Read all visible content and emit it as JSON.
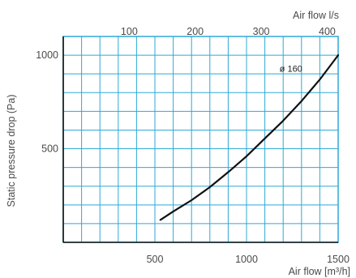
{
  "chart_data": {
    "type": "line",
    "title": "",
    "xlabel": "Air flow [m³/h]",
    "x2label": "Air flow l/s",
    "ylabel": "Static pressure drop (Pa)",
    "xlim": [
      0,
      1500
    ],
    "ylim": [
      0,
      1100
    ],
    "x_ticks": [
      500,
      1000,
      1500
    ],
    "x_tick_labels": [
      "500",
      "1000",
      "1500"
    ],
    "x2_ticks_ls": [
      100,
      200,
      300,
      400
    ],
    "x2_tick_labels": [
      "100",
      "200",
      "300",
      "400"
    ],
    "y_ticks": [
      500,
      1000
    ],
    "y_tick_labels": [
      "500",
      "1000"
    ],
    "grid": true,
    "grid_color": "#2ea9d6",
    "line_color": "#111111",
    "series": [
      {
        "name": "ø 160",
        "x": [
          530,
          600,
          700,
          800,
          900,
          1000,
          1100,
          1200,
          1300,
          1400,
          1500
        ],
        "values": [
          120,
          165,
          225,
          295,
          375,
          460,
          555,
          650,
          755,
          870,
          1000
        ]
      }
    ]
  }
}
